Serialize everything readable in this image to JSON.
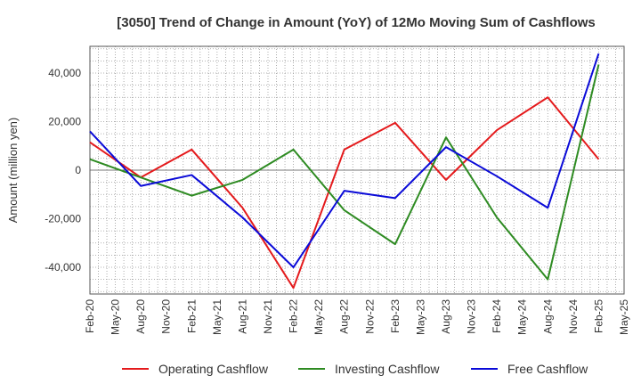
{
  "chart_data": {
    "type": "line",
    "title": "[3050]  Trend of Change in Amount (YoY) of 12Mo Moving Sum of Cashflows",
    "xlabel": "",
    "ylabel": "Amount (million yen)",
    "categories": [
      "Feb-20",
      "May-20",
      "Aug-20",
      "Nov-20",
      "Feb-21",
      "May-21",
      "Aug-21",
      "Nov-21",
      "Feb-22",
      "May-22",
      "Aug-22",
      "Nov-22",
      "Feb-23",
      "May-23",
      "Aug-23",
      "Nov-23",
      "Feb-24",
      "May-24",
      "Aug-24",
      "Nov-24",
      "Feb-25",
      "May-25"
    ],
    "ylim": [
      -51000,
      51000
    ],
    "yticks": [
      -40000,
      -20000,
      0,
      20000,
      40000
    ],
    "ytick_labels": [
      "-40,000",
      "-20,000",
      "0",
      "20,000",
      "40,000"
    ],
    "grid": true,
    "legend_position": "bottom",
    "series": [
      {
        "name": "Operating Cashflow",
        "color": "#e41a1c",
        "values": [
          11500,
          null,
          -3000,
          null,
          8500,
          null,
          -15500,
          null,
          -48500,
          null,
          8500,
          null,
          19500,
          null,
          -4000,
          null,
          16500,
          null,
          30000,
          null,
          4500,
          null
        ]
      },
      {
        "name": "Investing Cashflow",
        "color": "#2e8b22",
        "values": [
          4500,
          null,
          -3000,
          null,
          -10500,
          null,
          -4000,
          null,
          8500,
          null,
          -16500,
          null,
          -30500,
          null,
          13500,
          null,
          -19500,
          null,
          -45000,
          null,
          43500,
          null
        ]
      },
      {
        "name": "Free Cashflow",
        "color": "#0a0ad8",
        "values": [
          16000,
          null,
          -6500,
          null,
          -2000,
          null,
          -19500,
          null,
          -40000,
          null,
          -8500,
          null,
          -11500,
          null,
          9500,
          null,
          -2500,
          null,
          -15500,
          null,
          48000,
          null
        ]
      }
    ]
  }
}
